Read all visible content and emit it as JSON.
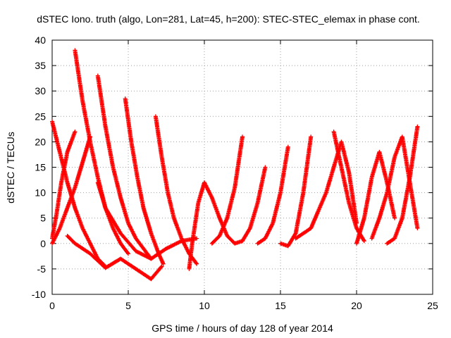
{
  "chart_data": {
    "type": "scatter",
    "title": "dSTEC Iono. truth (algo, Lon=281, Lat=45, h=200): STEC-STEC_elemax in phase cont.",
    "xlabel": "GPS time / hours of day 128 of year 2014",
    "ylabel": "dSTEC  / TECUs",
    "xlim": [
      0,
      25
    ],
    "ylim": [
      -10,
      40
    ],
    "x_ticks": [
      "0",
      "5",
      "10",
      "15",
      "20",
      "25"
    ],
    "y_ticks": [
      "-10",
      "-5",
      "0",
      "5",
      "10",
      "15",
      "20",
      "25",
      "30",
      "35",
      "40"
    ],
    "grid": true,
    "legend": "none",
    "marker": "plus",
    "color": "#ff0000",
    "series": [
      {
        "x": [
          0.0,
          0.5,
          1.0,
          1.5,
          2.0,
          3.0,
          3.5
        ],
        "y": [
          24.0,
          18.0,
          12.0,
          7.0,
          3.0,
          -3.0,
          -4.5
        ]
      },
      {
        "x": [
          0.0,
          0.5,
          1.0,
          1.5,
          2.0,
          2.5
        ],
        "y": [
          0.0,
          3.0,
          7.0,
          11.0,
          16.0,
          21.0
        ]
      },
      {
        "x": [
          0.0,
          0.3,
          0.6,
          1.0,
          1.5
        ],
        "y": [
          1.0,
          6.0,
          12.0,
          18.0,
          22.0
        ]
      },
      {
        "x": [
          1.5,
          2.0,
          2.5,
          3.0,
          3.5,
          4.0,
          4.5,
          5.0
        ],
        "y": [
          38.0,
          28.0,
          20.0,
          13.0,
          7.0,
          3.0,
          0.0,
          -2.0
        ]
      },
      {
        "x": [
          3.0,
          3.5,
          4.0,
          4.5,
          5.0,
          5.5,
          6.0,
          6.5
        ],
        "y": [
          33.0,
          23.0,
          15.0,
          9.0,
          4.0,
          1.0,
          -1.0,
          -3.0
        ]
      },
      {
        "x": [
          4.8,
          5.2,
          5.6,
          6.0,
          6.5,
          7.0,
          7.3
        ],
        "y": [
          28.5,
          20.0,
          13.0,
          7.0,
          2.0,
          -2.0,
          -4.0
        ]
      },
      {
        "x": [
          6.8,
          7.2,
          7.6,
          8.0,
          8.5,
          9.0,
          9.5
        ],
        "y": [
          25.0,
          17.0,
          10.0,
          5.0,
          1.0,
          -2.0,
          -4.0
        ]
      },
      {
        "x": [
          1.0,
          1.5,
          2.5,
          3.5,
          4.5,
          5.5,
          6.5,
          7.2
        ],
        "y": [
          1.5,
          0.0,
          -2.0,
          -4.8,
          -3.0,
          -5.0,
          -7.0,
          -4.5
        ]
      },
      {
        "x": [
          3.0,
          3.5,
          4.5,
          5.5,
          6.5,
          7.5,
          8.5,
          9.5
        ],
        "y": [
          12.0,
          7.0,
          2.0,
          -1.5,
          -3.0,
          -1.0,
          0.5,
          1.0
        ]
      },
      {
        "x": [
          9.0,
          9.2,
          9.4,
          9.6,
          10.0
        ],
        "y": [
          -5.0,
          0.0,
          4.0,
          8.0,
          12.0
        ]
      },
      {
        "x": [
          10.0,
          10.5,
          11.0,
          11.5,
          12.0,
          12.5
        ],
        "y": [
          12.0,
          9.0,
          5.0,
          1.5,
          0.0,
          0.5
        ]
      },
      {
        "x": [
          10.5,
          11.0,
          11.5,
          12.0,
          12.5
        ],
        "y": [
          0.0,
          1.5,
          5.0,
          11.0,
          21.0
        ]
      },
      {
        "x": [
          12.5,
          13.0,
          13.5,
          14.0
        ],
        "y": [
          0.5,
          3.0,
          8.0,
          15.0
        ]
      },
      {
        "x": [
          13.5,
          14.0,
          14.5,
          15.0,
          15.5
        ],
        "y": [
          0.0,
          1.0,
          4.0,
          10.0,
          19.0
        ]
      },
      {
        "x": [
          15.0,
          15.5,
          16.0,
          16.5,
          17.0
        ],
        "y": [
          0.0,
          -0.5,
          2.0,
          10.0,
          21.0
        ]
      },
      {
        "x": [
          16.0,
          17.0,
          18.0,
          19.0,
          19.5,
          20.0
        ],
        "y": [
          1.0,
          3.0,
          10.0,
          20.0,
          14.0,
          4.0
        ]
      },
      {
        "x": [
          18.5,
          19.0,
          19.5,
          20.0,
          20.5
        ],
        "y": [
          22.0,
          15.0,
          8.0,
          3.0,
          0.5
        ]
      },
      {
        "x": [
          20.0,
          20.5,
          21.0,
          21.5,
          22.0,
          22.5
        ],
        "y": [
          0.0,
          5.0,
          13.0,
          18.0,
          12.0,
          5.0
        ]
      },
      {
        "x": [
          21.0,
          21.5,
          22.0,
          22.5,
          23.0,
          23.5,
          24.0
        ],
        "y": [
          1.0,
          5.0,
          10.0,
          17.0,
          21.0,
          12.0,
          3.0
        ]
      },
      {
        "x": [
          22.0,
          22.5,
          23.0,
          23.5,
          24.0
        ],
        "y": [
          0.0,
          1.0,
          5.0,
          13.0,
          23.0
        ]
      }
    ]
  }
}
